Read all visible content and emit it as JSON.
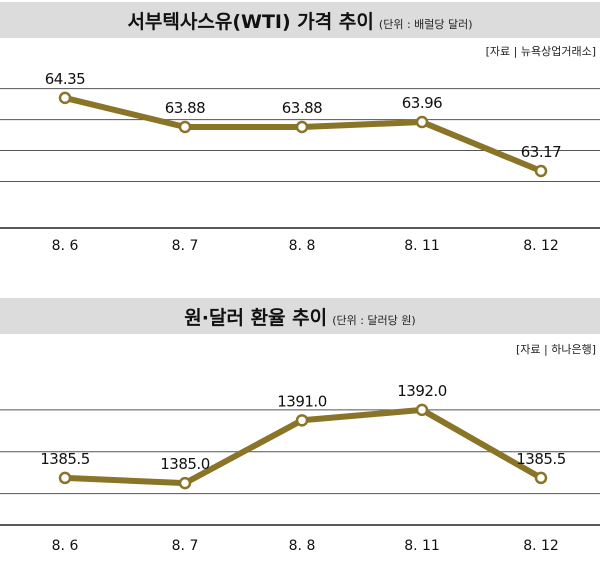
{
  "colors": {
    "header_bg": "#dcdcdc",
    "line": "#8a7428",
    "marker_fill": "#ffffff",
    "grid": "#555555",
    "axis": "#222222"
  },
  "chart_data": [
    {
      "type": "line",
      "title": "서부텍사스유(WTI) 가격 추이",
      "unit_note": "(단위 : 배럴당 달러)",
      "source": "[자료 | 뉴욕상업거래소]",
      "categories": [
        "8. 6",
        "8. 7",
        "8. 8",
        "8. 11",
        "8. 12"
      ],
      "values": [
        64.35,
        63.88,
        63.88,
        63.96,
        63.17
      ],
      "labels": [
        "64.35",
        "63.88",
        "63.88",
        "63.96",
        "63.17"
      ],
      "ylim": [
        62.25,
        64.8
      ],
      "grid_values": [
        63.0,
        63.5,
        64.0,
        64.5
      ]
    },
    {
      "type": "line",
      "title": "원·달러 환율 추이",
      "unit_note": "(단위 : 달러당 원)",
      "source": "[자료 | 하나은행]",
      "categories": [
        "8. 6",
        "8. 7",
        "8. 8",
        "8. 11",
        "8. 12"
      ],
      "values": [
        1385.5,
        1385.0,
        1391.0,
        1392.0,
        1385.5
      ],
      "labels": [
        "1385.5",
        "1385.0",
        "1391.0",
        "1392.0",
        "1385.5"
      ],
      "ylim": [
        1381.0,
        1396.0
      ],
      "grid_values": [
        1384.0,
        1388.0,
        1392.0
      ]
    }
  ]
}
